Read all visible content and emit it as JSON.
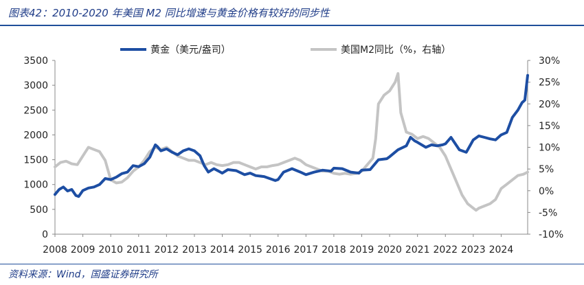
{
  "header": {
    "title": "图表42：2010-2020 年美国 M2 同比增速与黄金价格有较好的同步性"
  },
  "footer": {
    "source": "资料来源：Wind，国盛证券研究所"
  },
  "colors": {
    "gold": "#1d4ea3",
    "m2": "#c4c4c4",
    "rule": "#1f4e9a",
    "title": "#1f3c88"
  },
  "chart_data": {
    "type": "line",
    "title": "",
    "xlabel": "",
    "ylabel": "",
    "xlim": [
      2008.0,
      2024.95
    ],
    "ylim": [
      0,
      3500
    ],
    "y2lim": [
      -10,
      30
    ],
    "x_ticks": [
      "2008",
      "2009",
      "2010",
      "2011",
      "2012",
      "2013",
      "2014",
      "2015",
      "2016",
      "2017",
      "2018",
      "2019",
      "2020",
      "2021",
      "2022",
      "2023",
      "2024"
    ],
    "y_ticks": [
      "0",
      "500",
      "1000",
      "1500",
      "2000",
      "2500",
      "3000",
      "3500"
    ],
    "y2_ticks": [
      "-10%",
      "-5%",
      "0%",
      "5%",
      "10%",
      "15%",
      "20%",
      "25%",
      "30%"
    ],
    "legend_position": "top",
    "series": [
      {
        "name": "黄金（美元/盎司）",
        "axis": "left",
        "x": [
          2008.0,
          2008.15,
          2008.3,
          2008.45,
          2008.6,
          2008.75,
          2008.85,
          2009.0,
          2009.2,
          2009.4,
          2009.6,
          2009.8,
          2010.0,
          2010.2,
          2010.4,
          2010.6,
          2010.8,
          2011.0,
          2011.2,
          2011.4,
          2011.6,
          2011.68,
          2011.8,
          2012.0,
          2012.2,
          2012.4,
          2012.6,
          2012.8,
          2013.0,
          2013.2,
          2013.35,
          2013.5,
          2013.7,
          2013.9,
          2014.0,
          2014.2,
          2014.5,
          2014.8,
          2015.0,
          2015.2,
          2015.5,
          2015.9,
          2016.0,
          2016.2,
          2016.5,
          2016.8,
          2017.0,
          2017.3,
          2017.6,
          2017.9,
          2018.0,
          2018.3,
          2018.6,
          2018.9,
          2019.0,
          2019.3,
          2019.6,
          2019.9,
          2020.0,
          2020.3,
          2020.6,
          2020.75,
          2020.9,
          2021.0,
          2021.3,
          2021.5,
          2021.7,
          2021.9,
          2022.0,
          2022.2,
          2022.5,
          2022.75,
          2022.9,
          2023.0,
          2023.2,
          2023.4,
          2023.6,
          2023.8,
          2024.0,
          2024.2,
          2024.4,
          2024.6,
          2024.75,
          2024.85,
          2024.95
        ],
        "values": [
          800,
          900,
          950,
          870,
          900,
          780,
          760,
          880,
          930,
          950,
          1000,
          1120,
          1100,
          1150,
          1220,
          1250,
          1380,
          1360,
          1420,
          1550,
          1800,
          1760,
          1680,
          1720,
          1650,
          1600,
          1680,
          1720,
          1680,
          1580,
          1380,
          1250,
          1320,
          1260,
          1230,
          1300,
          1280,
          1200,
          1230,
          1180,
          1160,
          1080,
          1100,
          1250,
          1320,
          1250,
          1200,
          1250,
          1290,
          1270,
          1330,
          1320,
          1250,
          1230,
          1290,
          1300,
          1500,
          1520,
          1560,
          1700,
          1780,
          1950,
          1880,
          1850,
          1750,
          1800,
          1780,
          1800,
          1820,
          1950,
          1700,
          1650,
          1800,
          1900,
          1980,
          1950,
          1920,
          1900,
          2000,
          2050,
          2350,
          2500,
          2650,
          2700,
          3200
        ]
      },
      {
        "name": "美国M2同比（%，右轴）",
        "axis": "right",
        "x": [
          2008.0,
          2008.2,
          2008.4,
          2008.6,
          2008.8,
          2009.0,
          2009.2,
          2009.4,
          2009.6,
          2009.8,
          2010.0,
          2010.2,
          2010.4,
          2010.6,
          2010.8,
          2011.0,
          2011.2,
          2011.4,
          2011.6,
          2011.8,
          2012.0,
          2012.2,
          2012.4,
          2012.6,
          2012.8,
          2013.0,
          2013.2,
          2013.4,
          2013.6,
          2013.8,
          2014.0,
          2014.2,
          2014.4,
          2014.6,
          2014.8,
          2015.0,
          2015.2,
          2015.4,
          2015.6,
          2015.8,
          2016.0,
          2016.2,
          2016.4,
          2016.6,
          2016.8,
          2017.0,
          2017.2,
          2017.4,
          2017.6,
          2017.8,
          2018.0,
          2018.2,
          2018.4,
          2018.6,
          2018.8,
          2019.0,
          2019.2,
          2019.4,
          2019.5,
          2019.6,
          2019.8,
          2020.0,
          2020.1,
          2020.2,
          2020.3,
          2020.4,
          2020.6,
          2020.8,
          2021.0,
          2021.2,
          2021.4,
          2021.6,
          2021.8,
          2022.0,
          2022.2,
          2022.4,
          2022.6,
          2022.8,
          2023.0,
          2023.1,
          2023.2,
          2023.4,
          2023.6,
          2023.8,
          2024.0,
          2024.2,
          2024.4,
          2024.6,
          2024.8,
          2024.95
        ],
        "values": [
          5.5,
          6.5,
          6.8,
          6.2,
          6.0,
          8.0,
          10.0,
          9.5,
          9.0,
          7.0,
          2.5,
          1.8,
          2.0,
          3.0,
          4.5,
          5.5,
          7.0,
          9.0,
          10.0,
          9.5,
          10.0,
          9.0,
          8.0,
          7.5,
          7.0,
          7.0,
          6.5,
          6.0,
          6.5,
          6.0,
          5.8,
          6.0,
          6.5,
          6.5,
          6.0,
          5.5,
          5.0,
          5.5,
          5.5,
          5.8,
          6.0,
          6.5,
          7.0,
          7.5,
          7.0,
          6.0,
          5.5,
          5.0,
          4.5,
          4.5,
          4.0,
          3.8,
          4.0,
          3.8,
          4.0,
          4.5,
          6.0,
          7.5,
          12.0,
          20.0,
          22.0,
          23.0,
          24.0,
          25.0,
          27.0,
          18.0,
          13.5,
          13.0,
          12.0,
          12.5,
          12.0,
          11.0,
          10.0,
          8.0,
          5.0,
          2.0,
          -1.0,
          -3.0,
          -4.0,
          -4.5,
          -4.0,
          -3.5,
          -3.0,
          -2.0,
          0.5,
          1.5,
          2.5,
          3.5,
          3.8,
          4.3
        ]
      }
    ]
  }
}
